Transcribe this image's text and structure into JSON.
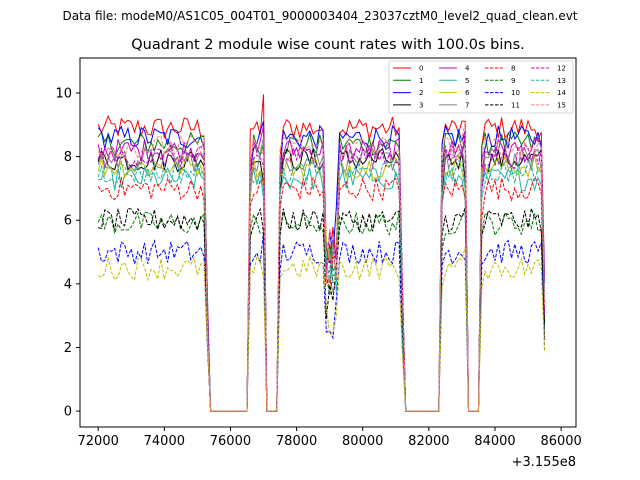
{
  "chart_data": {
    "type": "line",
    "suptitle": "Data file: modeM0/AS1C05_004T01_9000003404_23037cztM0_level2_quad_clean.evt",
    "title": "Quadrant 2 module wise count rates with 100.0s bins.",
    "xlabel": "",
    "ylabel": "",
    "x_offset_label": "+3.155e8",
    "xlim": [
      71450,
      86450
    ],
    "ylim": [
      -0.5,
      11.1
    ],
    "xticks": [
      72000,
      74000,
      76000,
      78000,
      80000,
      82000,
      84000,
      86000
    ],
    "xtick_labels": [
      "72000",
      "74000",
      "76000",
      "78000",
      "80000",
      "82000",
      "84000",
      "86000"
    ],
    "yticks": [
      0,
      2,
      4,
      6,
      8,
      10
    ],
    "ytick_labels": [
      "0",
      "2",
      "4",
      "6",
      "8",
      "10"
    ],
    "legend_position": "top-right",
    "x_range": [
      72000,
      85500
    ],
    "bin_seconds": 100,
    "segments_note": "on-source: 72000-75300, 76600-77000, 77500-81200, 82400-83100, 83600-85500; gaps (zero rate): 75400-76500, 77100-77400, 81300-82300, 83200-83500",
    "series": [
      {
        "name": "0",
        "color": "#ff0000",
        "dash": "solid",
        "mean": 8.9
      },
      {
        "name": "1",
        "color": "#008000",
        "dash": "solid",
        "mean": 8.4
      },
      {
        "name": "2",
        "color": "#0000ff",
        "dash": "solid",
        "mean": 8.6
      },
      {
        "name": "3",
        "color": "#000000",
        "dash": "solid",
        "mean": 7.9
      },
      {
        "name": "4",
        "color": "#bf00bf",
        "dash": "solid",
        "mean": 8.2
      },
      {
        "name": "5",
        "color": "#20b2aa",
        "dash": "solid",
        "mean": 7.3
      },
      {
        "name": "6",
        "color": "#bfbf00",
        "dash": "solid",
        "mean": 7.7
      },
      {
        "name": "7",
        "color": "#808080",
        "dash": "solid",
        "mean": 7.9
      },
      {
        "name": "8",
        "color": "#ff0000",
        "dash": "dashed",
        "mean": 7.0
      },
      {
        "name": "9",
        "color": "#008000",
        "dash": "dashed",
        "mean": 5.9
      },
      {
        "name": "10",
        "color": "#0000ff",
        "dash": "dashed",
        "mean": 5.0
      },
      {
        "name": "11",
        "color": "#000000",
        "dash": "dashed",
        "mean": 6.0
      },
      {
        "name": "12",
        "color": "#bf00bf",
        "dash": "dashed",
        "mean": 8.0
      },
      {
        "name": "13",
        "color": "#20b2aa",
        "dash": "dashed",
        "mean": 7.5
      },
      {
        "name": "14",
        "color": "#bfbf00",
        "dash": "dashed",
        "mean": 4.5
      },
      {
        "name": "15",
        "color": "#ff8080",
        "dash": "dashed",
        "mean": 8.3
      }
    ]
  }
}
